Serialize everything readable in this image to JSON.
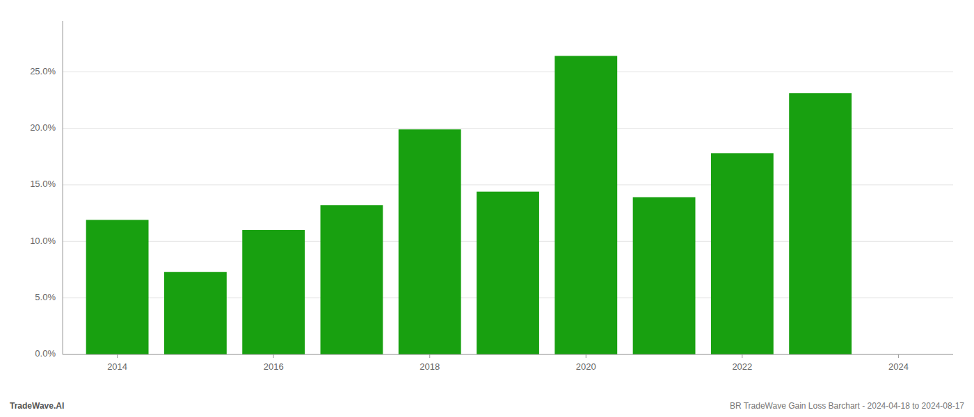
{
  "chart_data": {
    "type": "bar",
    "x": [
      2014,
      2015,
      2016,
      2017,
      2018,
      2019,
      2020,
      2021,
      2022,
      2023
    ],
    "values": [
      0.119,
      0.073,
      0.11,
      0.132,
      0.199,
      0.144,
      0.264,
      0.139,
      0.178,
      0.231
    ],
    "color": "#18a010",
    "xlim": [
      2013.3,
      2024.7
    ],
    "xticks": [
      2014,
      2016,
      2018,
      2020,
      2022,
      2024
    ],
    "ylim": [
      0,
      0.295
    ],
    "yticks": [
      {
        "value": 0.0,
        "label": "0.0%"
      },
      {
        "value": 0.05,
        "label": "5.0%"
      },
      {
        "value": 0.1,
        "label": "10.0%"
      },
      {
        "value": 0.15,
        "label": "15.0%"
      },
      {
        "value": 0.2,
        "label": "20.0%"
      },
      {
        "value": 0.25,
        "label": "25.0%"
      }
    ],
    "grid": true,
    "annotations": [
      "TradeWave.AI",
      "BR TradeWave Gain Loss Barchart - 2024-04-18 to 2024-08-17"
    ]
  }
}
